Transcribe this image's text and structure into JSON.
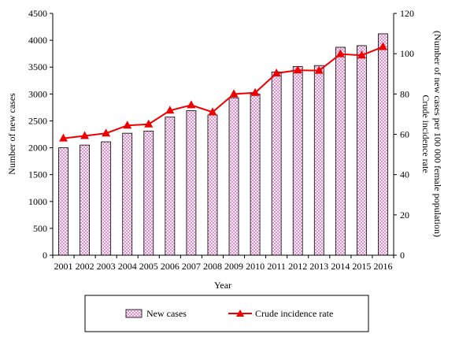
{
  "chart_data": {
    "type": "bar+line",
    "categories": [
      "2001",
      "2002",
      "2003",
      "2004",
      "2005",
      "2006",
      "2007",
      "2008",
      "2009",
      "2010",
      "2011",
      "2012",
      "2013",
      "2014",
      "2015",
      "2016"
    ],
    "xlabel": "Year",
    "ylabel_left": "Number of new cases",
    "ylabel_right_line1": "Crude incidence rate",
    "ylabel_right_line2": "(Number of new cases per 100 000 female population)",
    "ylim_left": [
      0,
      4500
    ],
    "yticks_left": [
      0,
      500,
      1000,
      1500,
      2000,
      2500,
      3000,
      3500,
      4000,
      4500
    ],
    "ylim_right": [
      0,
      120
    ],
    "yticks_right": [
      0,
      20,
      40,
      60,
      80,
      100,
      120
    ],
    "grid": false,
    "legend_position": "bottom",
    "series": [
      {
        "name": "New cases",
        "kind": "bar",
        "axis": "left",
        "color": "#c48fb6",
        "pattern": "pink-hatch",
        "values": [
          2000,
          2050,
          2110,
          2270,
          2310,
          2570,
          2690,
          2610,
          2930,
          3000,
          3410,
          3510,
          3530,
          3870,
          3900,
          4120
        ]
      },
      {
        "name": "Crude incidence rate",
        "kind": "line",
        "axis": "right",
        "color": "#ee0000",
        "marker": "triangle",
        "values": [
          58.0,
          59.2,
          60.5,
          64.4,
          65.0,
          71.8,
          74.5,
          71.0,
          80.0,
          80.6,
          90.3,
          91.8,
          91.6,
          99.8,
          99.2,
          103.4
        ]
      }
    ]
  }
}
